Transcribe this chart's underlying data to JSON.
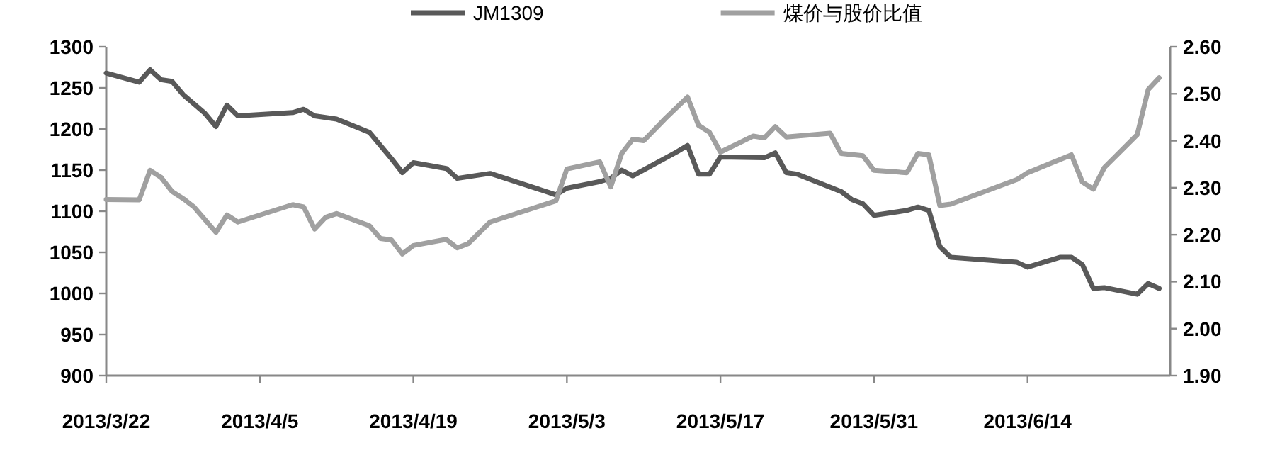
{
  "chart_data": {
    "type": "line",
    "xlim": [
      "2013-03-22",
      "2013-06-27"
    ],
    "xticks": [
      {
        "value": "2013-03-22",
        "label": "2013/3/22"
      },
      {
        "value": "2013-04-05",
        "label": "2013/4/5"
      },
      {
        "value": "2013-04-19",
        "label": "2013/4/19"
      },
      {
        "value": "2013-05-03",
        "label": "2013/5/3"
      },
      {
        "value": "2013-05-17",
        "label": "2013/5/17"
      },
      {
        "value": "2013-05-31",
        "label": "2013/5/31"
      },
      {
        "value": "2013-06-14",
        "label": "2013/6/14"
      }
    ],
    "ylim": [
      900,
      1300
    ],
    "yticks": [
      900,
      950,
      1000,
      1050,
      1100,
      1150,
      1200,
      1250,
      1300
    ],
    "y2lim": [
      1.9,
      2.6
    ],
    "y2ticks": [
      {
        "value": 1.9,
        "label": "1.90"
      },
      {
        "value": 2.0,
        "label": "2.00"
      },
      {
        "value": 2.1,
        "label": "2.10"
      },
      {
        "value": 2.2,
        "label": "2.20"
      },
      {
        "value": 2.3,
        "label": "2.30"
      },
      {
        "value": 2.4,
        "label": "2.40"
      },
      {
        "value": 2.5,
        "label": "2.50"
      },
      {
        "value": 2.6,
        "label": "2.60"
      }
    ],
    "grid": false,
    "legend": "top",
    "series": [
      {
        "name": "JM1309",
        "color": "#595959",
        "x": [
          "2013-03-22",
          "2013-03-25",
          "2013-03-26",
          "2013-03-27",
          "2013-03-28",
          "2013-03-29",
          "2013-03-31",
          "2013-04-01",
          "2013-04-02",
          "2013-04-03",
          "2013-04-08",
          "2013-04-09",
          "2013-04-10",
          "2013-04-12",
          "2013-04-15",
          "2013-04-17",
          "2013-04-18",
          "2013-04-19",
          "2013-04-22",
          "2013-04-23",
          "2013-04-26",
          "2013-05-02",
          "2013-05-03",
          "2013-05-06",
          "2013-05-07",
          "2013-05-08",
          "2013-05-09",
          "2013-05-13",
          "2013-05-14",
          "2013-05-15",
          "2013-05-16",
          "2013-05-17",
          "2013-05-21",
          "2013-05-22",
          "2013-05-23",
          "2013-05-24",
          "2013-05-28",
          "2013-05-29",
          "2013-05-30",
          "2013-05-31",
          "2013-06-03",
          "2013-06-04",
          "2013-06-05",
          "2013-06-06",
          "2013-06-07",
          "2013-06-13",
          "2013-06-14",
          "2013-06-17",
          "2013-06-18",
          "2013-06-19",
          "2013-06-20",
          "2013-06-21",
          "2013-06-24",
          "2013-06-25",
          "2013-06-26"
        ],
        "values": [
          1268,
          1257,
          1272,
          1260,
          1258,
          1242,
          1219,
          1203,
          1229,
          1216,
          1220,
          1224,
          1216,
          1212,
          1196,
          1164,
          1147,
          1159,
          1152,
          1140,
          1146,
          1120,
          1128,
          1136,
          1140,
          1150,
          1143,
          1172,
          1180,
          1145,
          1145,
          1166,
          1165,
          1171,
          1147,
          1145,
          1124,
          1114,
          1109,
          1095,
          1101,
          1105,
          1101,
          1057,
          1044,
          1038,
          1032,
          1044,
          1044,
          1035,
          1006,
          1007,
          999,
          1012,
          1006
        ]
      },
      {
        "name": "煤价与股价比值",
        "color": "#a0a0a0",
        "axis": "y2",
        "x": [
          "2013-03-22",
          "2013-03-25",
          "2013-03-26",
          "2013-03-27",
          "2013-03-28",
          "2013-03-29",
          "2013-03-30",
          "2013-04-01",
          "2013-04-02",
          "2013-04-03",
          "2013-04-08",
          "2013-04-09",
          "2013-04-10",
          "2013-04-11",
          "2013-04-12",
          "2013-04-15",
          "2013-04-16",
          "2013-04-17",
          "2013-04-18",
          "2013-04-19",
          "2013-04-22",
          "2013-04-23",
          "2013-04-24",
          "2013-04-26",
          "2013-05-02",
          "2013-05-03",
          "2013-05-06",
          "2013-05-07",
          "2013-05-08",
          "2013-05-09",
          "2013-05-10",
          "2013-05-12",
          "2013-05-14",
          "2013-05-15",
          "2013-05-16",
          "2013-05-17",
          "2013-05-20",
          "2013-05-21",
          "2013-05-22",
          "2013-05-23",
          "2013-05-27",
          "2013-05-28",
          "2013-05-30",
          "2013-05-31",
          "2013-06-03",
          "2013-06-04",
          "2013-06-05",
          "2013-06-06",
          "2013-06-07",
          "2013-06-13",
          "2013-06-14",
          "2013-06-18",
          "2013-06-19",
          "2013-06-20",
          "2013-06-21",
          "2013-06-24",
          "2013-06-25",
          "2013-06-26"
        ],
        "values": [
          2.275,
          2.274,
          2.337,
          2.322,
          2.292,
          2.277,
          2.259,
          2.205,
          2.242,
          2.227,
          2.264,
          2.259,
          2.212,
          2.237,
          2.245,
          2.219,
          2.192,
          2.189,
          2.159,
          2.177,
          2.19,
          2.172,
          2.181,
          2.227,
          2.272,
          2.34,
          2.355,
          2.302,
          2.373,
          2.403,
          2.4,
          2.448,
          2.493,
          2.433,
          2.418,
          2.376,
          2.41,
          2.406,
          2.43,
          2.408,
          2.416,
          2.373,
          2.368,
          2.337,
          2.332,
          2.373,
          2.37,
          2.262,
          2.265,
          2.317,
          2.332,
          2.37,
          2.312,
          2.297,
          2.343,
          2.413,
          2.509,
          2.534
        ]
      }
    ]
  }
}
